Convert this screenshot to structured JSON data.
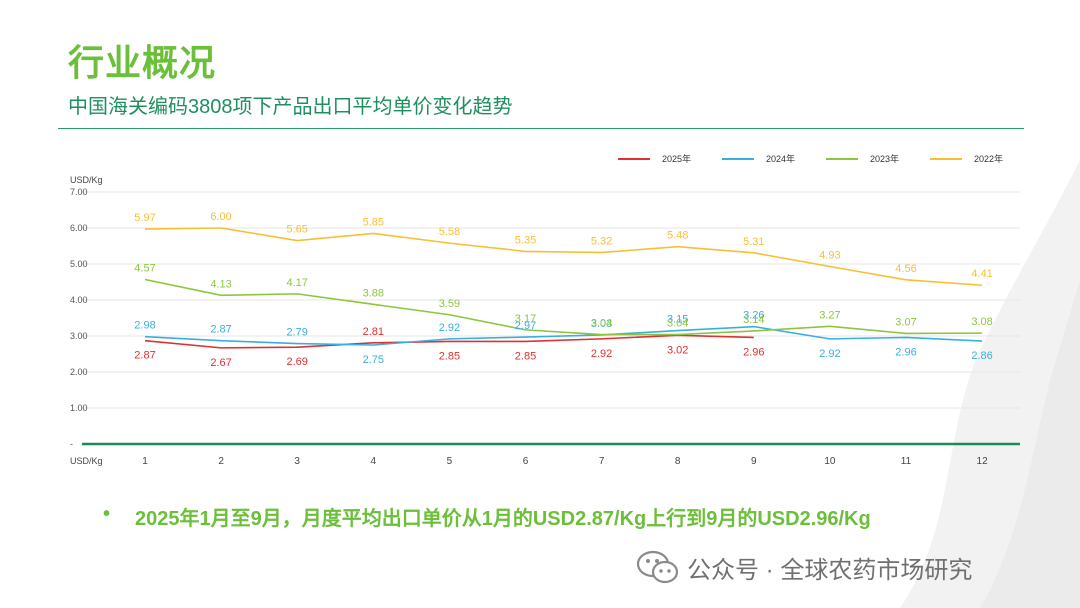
{
  "header": {
    "title": "行业概况",
    "subtitle": "中国海关编码3808项下产品出口平均单价变化趋势"
  },
  "summary": {
    "bullet": "•",
    "text": "2025年1月至9月，月度平均出口单价从1月的USD2.87/Kg上行到9月的USD2.96/Kg"
  },
  "watermark": {
    "text": "公众号 · 全球农药市场研究",
    "icon": "wechat-icon"
  },
  "colors": {
    "title": "#6cbf3a",
    "subtitle": "#1f8f5f",
    "baseline": "#1a8a5a"
  },
  "chart_data": {
    "type": "line",
    "ylabel": "USD/Kg",
    "xlabel": "USD/Kg",
    "categories": [
      "1",
      "2",
      "3",
      "4",
      "5",
      "6",
      "7",
      "8",
      "9",
      "10",
      "11",
      "12"
    ],
    "ylim": [
      0,
      7
    ],
    "yticks": [
      "-",
      "1.00",
      "2.00",
      "3.00",
      "4.00",
      "5.00",
      "6.00",
      "7.00"
    ],
    "grid": true,
    "legend_position": "top-right",
    "series": [
      {
        "name": "2025年",
        "color": "#e03030",
        "values": [
          2.87,
          2.67,
          2.69,
          2.81,
          2.85,
          2.85,
          2.92,
          3.02,
          2.96,
          null,
          null,
          null
        ]
      },
      {
        "name": "2024年",
        "color": "#3aaee0",
        "values": [
          2.98,
          2.87,
          2.79,
          2.75,
          2.92,
          2.97,
          3.03,
          3.15,
          3.26,
          2.92,
          2.96,
          2.86
        ]
      },
      {
        "name": "2023年",
        "color": "#8cc63f",
        "values": [
          4.57,
          4.13,
          4.17,
          3.88,
          3.59,
          3.17,
          3.04,
          3.04,
          3.14,
          3.27,
          3.07,
          3.08
        ]
      },
      {
        "name": "2022年",
        "color": "#f7c033",
        "values": [
          5.97,
          6.0,
          5.65,
          5.85,
          5.58,
          5.35,
          5.32,
          5.48,
          5.31,
          4.93,
          4.56,
          4.41
        ]
      }
    ]
  }
}
